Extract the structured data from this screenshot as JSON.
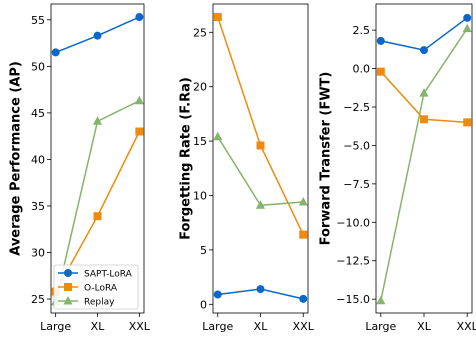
{
  "chart_data": [
    {
      "type": "line",
      "ylabel": "Average Performance (AP)",
      "categories": [
        "Large",
        "XL",
        "XXL"
      ],
      "ylim": [
        23.5,
        56.7
      ],
      "yticks": [
        25,
        30,
        35,
        40,
        45,
        50,
        55
      ],
      "legend": "lower-left",
      "series": [
        {
          "name": "SAPT-LoRA",
          "color": "#0c68c8",
          "marker": "circle",
          "values": [
            51.5,
            53.3,
            55.3
          ]
        },
        {
          "name": "O-LoRA",
          "color": "#f08a0c",
          "marker": "square",
          "values": [
            25.8,
            33.9,
            43.0
          ]
        },
        {
          "name": "Replay",
          "color": "#86b46c",
          "marker": "triangle",
          "values": [
            24.7,
            44.1,
            46.3
          ]
        }
      ]
    },
    {
      "type": "line",
      "ylabel": "Forgetting Rate (F.Ra)",
      "categories": [
        "Large",
        "XL",
        "XXL"
      ],
      "ylim": [
        -0.8,
        27.6
      ],
      "yticks": [
        0,
        5,
        10,
        15,
        20,
        25
      ],
      "series": [
        {
          "name": "SAPT-LoRA",
          "color": "#0c68c8",
          "marker": "circle",
          "values": [
            0.9,
            1.4,
            0.5
          ]
        },
        {
          "name": "O-LoRA",
          "color": "#f08a0c",
          "marker": "square",
          "values": [
            26.4,
            14.6,
            6.4
          ]
        },
        {
          "name": "Replay",
          "color": "#86b46c",
          "marker": "triangle",
          "values": [
            15.4,
            9.1,
            9.4
          ]
        }
      ]
    },
    {
      "type": "line",
      "ylabel": "Forward Transfer (FWT)",
      "categories": [
        "Large",
        "XL",
        "XXL"
      ],
      "ylim": [
        -15.9,
        4.2
      ],
      "yticks": [
        2.5,
        0.0,
        -2.5,
        -5.0,
        -7.5,
        -10.0,
        -12.5,
        -15.0
      ],
      "ytick_labels": [
        "2.5",
        "0.0",
        "−2.5",
        "−5.0",
        "−7.5",
        "−10.0",
        "−12.5",
        "−15.0"
      ],
      "series": [
        {
          "name": "SAPT-LoRA",
          "color": "#0c68c8",
          "marker": "circle",
          "values": [
            1.8,
            1.2,
            3.3
          ]
        },
        {
          "name": "O-LoRA",
          "color": "#f08a0c",
          "marker": "square",
          "values": [
            -0.2,
            -3.3,
            -3.5
          ]
        },
        {
          "name": "Replay",
          "color": "#86b46c",
          "marker": "triangle",
          "values": [
            -15.1,
            -1.6,
            2.6
          ]
        }
      ]
    }
  ]
}
